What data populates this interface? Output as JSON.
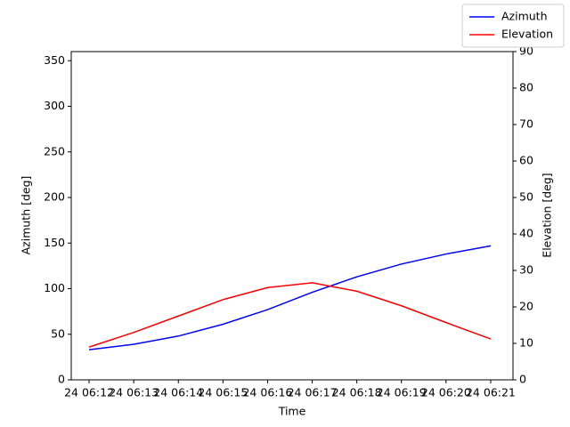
{
  "chart_data": {
    "type": "line",
    "x_label": "Time",
    "y_label": "Azimuth [deg]",
    "y2_label": "Elevation [deg]",
    "categories": [
      "24 06:12",
      "24 06:13",
      "24 06:14",
      "24 06:15",
      "24 06:16",
      "24 06:17",
      "24 06:18",
      "24 06:19",
      "24 06:20",
      "24 06:21"
    ],
    "series": [
      {
        "name": "Azimuth",
        "color": "#0000ff",
        "values": [
          33,
          39,
          48,
          61,
          77,
          96,
          113,
          127,
          138,
          147
        ]
      },
      {
        "name": "Elevation",
        "color": "#ff0000",
        "axis": "y2",
        "values": [
          9,
          13,
          17.5,
          22,
          25.3,
          26.6,
          24.3,
          20.3,
          15.7,
          11.2
        ]
      }
    ],
    "ylim": [
      0,
      360
    ],
    "yticks": [
      0,
      50,
      100,
      150,
      200,
      250,
      300,
      350
    ],
    "y2lim": [
      0,
      90
    ],
    "y2ticks": [
      0,
      10,
      20,
      30,
      40,
      50,
      60,
      70,
      80,
      90
    ],
    "grid": false,
    "legend": "upper right"
  }
}
